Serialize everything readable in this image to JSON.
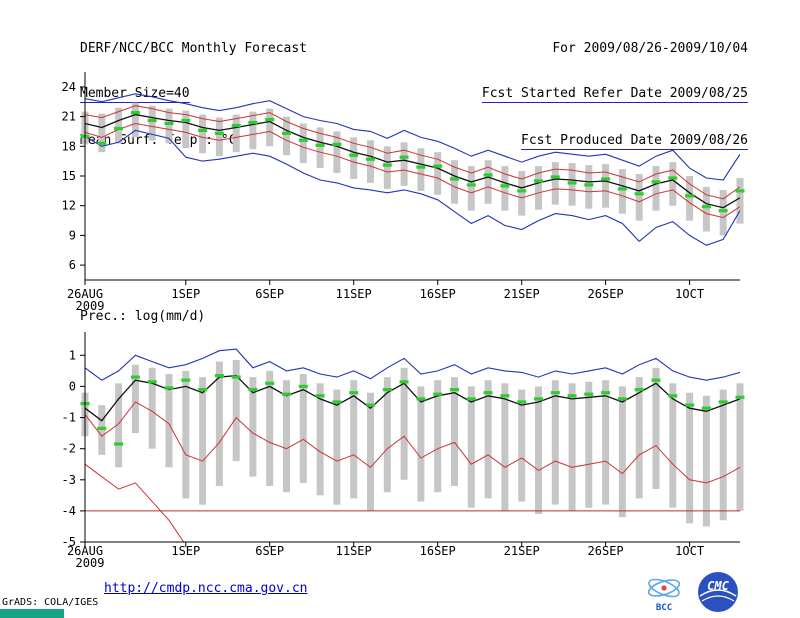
{
  "header": {
    "title": "DERF/NCC/BCC Monthly Forecast",
    "member_size": "Member Size=40",
    "temp_label": "Mean Surf. Temp.: °C",
    "for_range": "For 2009/08/26-2009/10/04",
    "refer_date": "Fcst Started Refer Date 2009/08/25",
    "produced_date": "Fcst Produced Date 2009/08/26"
  },
  "footer": {
    "url": "http://cmdp.ncc.cma.gov.cn",
    "grads_credit": "GrADS: COLA/IGES",
    "logo_bcc": "BCC",
    "logo_cmc": "CMC"
  },
  "colors": {
    "underline_blue": "#2222cc",
    "url_blue": "#0000cc",
    "grads_bar_teal": "#18a383",
    "line_blue": "#2233bb",
    "line_red": "#cc3333",
    "line_black": "#111111",
    "median_green": "#2ecc2e",
    "bar_gray": "#c6c6c6"
  },
  "chart_data": [
    {
      "id": "temp",
      "type": "line",
      "title": "Mean Surf. Temp.: °C",
      "n_days": 40,
      "x_tick_labels": [
        "26AUG",
        "1SEP",
        "6SEP",
        "11SEP",
        "16SEP",
        "21SEP",
        "26SEP",
        "1OCT"
      ],
      "x_tick_days": [
        0,
        6,
        11,
        16,
        21,
        26,
        31,
        36
      ],
      "x_year_label": "2009",
      "ylim": [
        4.5,
        25.5
      ],
      "yticks": [
        6,
        9,
        12,
        15,
        18,
        21,
        24
      ],
      "legend_position": "none",
      "grid": false,
      "series": [
        {
          "id": "ensemble-max",
          "name": "ensemble max",
          "color": "#2233bb",
          "width": 1.1,
          "values": [
            22.8,
            22.5,
            22.9,
            23.3,
            23.0,
            22.6,
            22.3,
            21.9,
            21.6,
            21.9,
            22.3,
            22.6,
            21.8,
            21.0,
            20.6,
            20.3,
            19.7,
            19.5,
            18.8,
            19.6,
            18.9,
            18.5,
            17.8,
            17.0,
            17.6,
            17.0,
            16.4,
            17.0,
            17.4,
            17.2,
            17.0,
            17.2,
            16.6,
            16.0,
            17.0,
            17.6,
            15.8,
            14.8,
            14.6,
            17.2
          ]
        },
        {
          "id": "upper-quartile",
          "name": "upper quartile",
          "color": "#cc3333",
          "width": 1.0,
          "values": [
            21.2,
            20.9,
            21.5,
            22.1,
            21.8,
            21.4,
            21.2,
            20.8,
            20.5,
            20.8,
            21.1,
            21.4,
            20.5,
            19.8,
            19.3,
            18.9,
            18.3,
            17.9,
            17.3,
            17.6,
            17.1,
            16.7,
            15.9,
            15.3,
            15.9,
            15.2,
            14.7,
            15.3,
            15.7,
            15.6,
            15.3,
            15.4,
            14.9,
            14.4,
            15.2,
            15.6,
            14.2,
            13.1,
            12.7,
            13.9
          ]
        },
        {
          "id": "ensemble-mean",
          "name": "ensemble mean",
          "color": "#111111",
          "width": 1.3,
          "values": [
            20.3,
            19.9,
            20.6,
            21.2,
            20.9,
            20.6,
            20.4,
            19.9,
            19.6,
            19.9,
            20.2,
            20.5,
            19.6,
            18.9,
            18.4,
            18.0,
            17.4,
            17.0,
            16.4,
            16.6,
            16.2,
            15.8,
            15.0,
            14.4,
            14.9,
            14.3,
            13.8,
            14.3,
            14.7,
            14.6,
            14.4,
            14.5,
            14.0,
            13.5,
            14.2,
            14.6,
            13.3,
            12.2,
            11.8,
            12.8
          ]
        },
        {
          "id": "lower-quartile",
          "name": "lower quartile",
          "color": "#cc3333",
          "width": 1.0,
          "values": [
            19.4,
            18.9,
            19.7,
            20.3,
            20.0,
            19.7,
            19.4,
            18.9,
            18.6,
            18.9,
            19.2,
            19.5,
            18.6,
            17.9,
            17.4,
            17.0,
            16.4,
            16.0,
            15.4,
            15.6,
            15.2,
            14.8,
            13.9,
            13.3,
            13.9,
            13.3,
            12.8,
            13.3,
            13.7,
            13.6,
            13.4,
            13.5,
            13.0,
            12.4,
            13.2,
            13.6,
            12.3,
            11.2,
            10.8,
            11.9
          ]
        },
        {
          "id": "ensemble-min",
          "name": "ensemble min",
          "color": "#2233bb",
          "width": 1.1,
          "values": [
            19.0,
            18.0,
            18.4,
            19.6,
            19.2,
            18.8,
            16.9,
            16.5,
            16.7,
            17.0,
            17.3,
            17.0,
            16.2,
            15.3,
            14.6,
            14.3,
            13.8,
            13.6,
            13.3,
            13.6,
            13.2,
            12.6,
            11.4,
            10.2,
            11.0,
            10.0,
            9.6,
            10.5,
            11.2,
            11.0,
            10.6,
            11.0,
            10.2,
            8.4,
            9.8,
            10.4,
            9.0,
            8.0,
            8.6,
            11.5
          ]
        }
      ],
      "median": {
        "name": "ensemble median",
        "color": "#2ecc2e",
        "values": [
          19.0,
          18.3,
          19.8,
          21.4,
          20.6,
          20.3,
          20.6,
          19.6,
          19.3,
          20.1,
          20.4,
          20.7,
          19.3,
          18.6,
          18.1,
          18.2,
          17.1,
          16.7,
          16.1,
          16.9,
          15.9,
          16.0,
          14.7,
          14.1,
          15.1,
          14.0,
          13.5,
          14.5,
          14.9,
          14.3,
          14.1,
          14.7,
          13.7,
          13.2,
          14.4,
          14.8,
          13.0,
          11.9,
          11.5,
          13.5
        ]
      },
      "bars": {
        "name": "ensemble spread",
        "color": "#c6c6c6",
        "high": [
          21.5,
          21.3,
          21.9,
          22.4,
          22.1,
          21.8,
          21.6,
          21.2,
          20.9,
          21.2,
          21.5,
          21.8,
          21.0,
          20.3,
          19.9,
          19.5,
          18.9,
          18.6,
          18.0,
          18.4,
          17.8,
          17.4,
          16.6,
          16.0,
          16.6,
          16.0,
          15.5,
          16.0,
          16.4,
          16.3,
          16.1,
          16.2,
          15.7,
          15.2,
          16.0,
          16.4,
          15.0,
          13.9,
          13.6,
          14.8
        ],
        "low": [
          18.2,
          17.4,
          18.3,
          18.9,
          18.6,
          18.3,
          17.8,
          17.3,
          17.0,
          17.4,
          17.7,
          18.0,
          17.1,
          16.3,
          15.8,
          15.3,
          14.7,
          14.3,
          13.7,
          14.0,
          13.5,
          13.1,
          12.2,
          11.5,
          12.2,
          11.5,
          11.0,
          11.6,
          12.1,
          12.0,
          11.7,
          11.8,
          11.2,
          10.5,
          11.5,
          12.0,
          10.5,
          9.4,
          9.0,
          10.2
        ]
      }
    },
    {
      "id": "prec",
      "type": "line",
      "title": "Prec.: log(mm/d)",
      "n_days": 40,
      "x_tick_labels": [
        "26AUG",
        "1SEP",
        "6SEP",
        "11SEP",
        "16SEP",
        "21SEP",
        "26SEP",
        "1OCT"
      ],
      "x_tick_days": [
        0,
        6,
        11,
        16,
        21,
        26,
        31,
        36
      ],
      "x_year_label": "2009",
      "ylim": [
        -5,
        1.75
      ],
      "yticks": [
        1,
        0,
        -1,
        -2,
        -3,
        -4,
        -5
      ],
      "legend_position": "none",
      "grid": false,
      "series": [
        {
          "id": "ensemble-max",
          "name": "ensemble max",
          "color": "#2233bb",
          "width": 1.1,
          "values": [
            0.6,
            0.2,
            0.5,
            1.0,
            0.8,
            0.6,
            0.7,
            0.9,
            1.15,
            1.2,
            0.6,
            0.8,
            0.5,
            0.6,
            0.4,
            0.3,
            0.5,
            0.25,
            0.6,
            0.9,
            0.4,
            0.5,
            0.7,
            0.4,
            0.6,
            0.5,
            0.45,
            0.3,
            0.5,
            0.4,
            0.5,
            0.6,
            0.4,
            0.7,
            0.9,
            0.5,
            0.3,
            0.2,
            0.3,
            0.45
          ]
        },
        {
          "id": "ensemble-mean",
          "name": "ensemble mean",
          "color": "#111111",
          "width": 1.3,
          "values": [
            -0.7,
            -1.1,
            -0.4,
            0.2,
            0.1,
            -0.1,
            0.0,
            -0.2,
            0.3,
            0.35,
            -0.2,
            0.0,
            -0.3,
            -0.1,
            -0.4,
            -0.6,
            -0.3,
            -0.7,
            -0.2,
            0.1,
            -0.5,
            -0.3,
            -0.2,
            -0.5,
            -0.3,
            -0.4,
            -0.6,
            -0.5,
            -0.3,
            -0.4,
            -0.35,
            -0.3,
            -0.5,
            -0.2,
            0.1,
            -0.4,
            -0.7,
            -0.8,
            -0.6,
            -0.4
          ]
        },
        {
          "id": "lower-quartile",
          "name": "lower quartile",
          "color": "#cc3333",
          "width": 1.0,
          "values": [
            -0.9,
            -1.6,
            -1.2,
            -0.5,
            -0.8,
            -1.2,
            -2.2,
            -2.4,
            -1.8,
            -1.0,
            -1.5,
            -1.8,
            -2.0,
            -1.7,
            -2.1,
            -2.4,
            -2.2,
            -2.6,
            -2.0,
            -1.6,
            -2.3,
            -2.0,
            -1.8,
            -2.5,
            -2.2,
            -2.6,
            -2.3,
            -2.7,
            -2.4,
            -2.6,
            -2.5,
            -2.4,
            -2.8,
            -2.2,
            -1.9,
            -2.5,
            -3.0,
            -3.1,
            -2.9,
            -2.6
          ]
        },
        {
          "id": "ensemble-min",
          "name": "ensemble min (clipped)",
          "color": "#cc3333",
          "width": 1.0,
          "values": [
            -2.5,
            -2.9,
            -3.3,
            -3.1,
            -3.7,
            -4.3,
            -5.1
          ]
        },
        {
          "id": "log-floor",
          "name": "log floor",
          "color": "#b03030",
          "width": 1.0,
          "constant": -4
        }
      ],
      "median": {
        "name": "ensemble median",
        "color": "#2ecc2e",
        "values": [
          -0.55,
          -1.35,
          -1.85,
          0.3,
          0.15,
          -0.05,
          0.2,
          -0.1,
          0.35,
          0.3,
          -0.1,
          0.1,
          -0.25,
          0.0,
          -0.3,
          -0.5,
          -0.2,
          -0.6,
          -0.1,
          0.15,
          -0.4,
          -0.25,
          -0.1,
          -0.4,
          -0.2,
          -0.3,
          -0.5,
          -0.4,
          -0.2,
          -0.3,
          -0.25,
          -0.2,
          -0.4,
          -0.1,
          0.2,
          -0.3,
          -0.6,
          -0.7,
          -0.5,
          -0.35
        ]
      },
      "bars": {
        "name": "ensemble spread",
        "color": "#c6c6c6",
        "high": [
          -0.2,
          -0.6,
          0.1,
          0.7,
          0.6,
          0.4,
          0.5,
          0.3,
          0.8,
          0.85,
          0.3,
          0.5,
          0.2,
          0.4,
          0.1,
          -0.1,
          0.2,
          -0.2,
          0.3,
          0.6,
          0.0,
          0.2,
          0.3,
          0.0,
          0.2,
          0.1,
          -0.1,
          0.0,
          0.2,
          0.1,
          0.15,
          0.2,
          0.0,
          0.3,
          0.6,
          0.1,
          -0.2,
          -0.3,
          -0.1,
          0.1
        ],
        "low": [
          -1.6,
          -2.2,
          -2.6,
          -1.5,
          -2.0,
          -2.6,
          -3.6,
          -3.8,
          -3.2,
          -2.4,
          -2.9,
          -3.2,
          -3.4,
          -3.1,
          -3.5,
          -3.8,
          -3.6,
          -4.0,
          -3.4,
          -3.0,
          -3.7,
          -3.4,
          -3.2,
          -3.9,
          -3.6,
          -4.0,
          -3.7,
          -4.1,
          -3.8,
          -4.0,
          -3.9,
          -3.8,
          -4.2,
          -3.6,
          -3.3,
          -3.9,
          -4.4,
          -4.5,
          -4.3,
          -4.0
        ]
      }
    }
  ]
}
